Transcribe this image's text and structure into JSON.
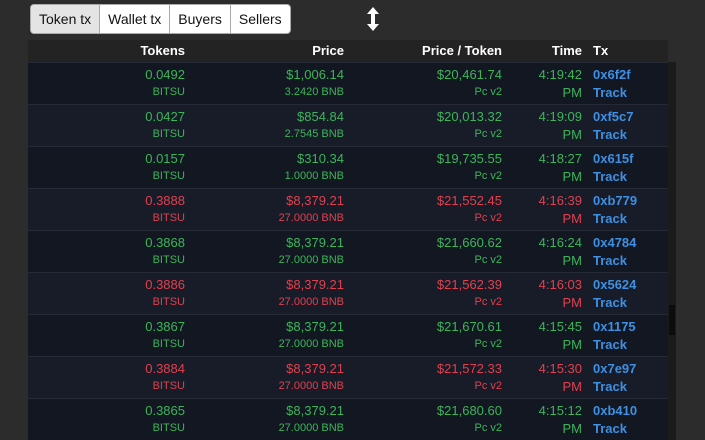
{
  "tabs": [
    "Token tx",
    "Wallet tx",
    "Buyers",
    "Sellers"
  ],
  "active_tab": 0,
  "columns": [
    "Tokens",
    "Price",
    "Price / Token",
    "Time",
    "Tx"
  ],
  "rows": [
    {
      "tokens": "0.0492",
      "symbol": "BITSU",
      "price": "$1,006.14",
      "price_bnb": "3.2420 BNB",
      "price_per_token": "$20,461.74",
      "dex": "Pc v2",
      "time": "4:19:42",
      "ampm": "PM",
      "tx": "0x6f2f",
      "link": "Track",
      "color": "#3cb55a"
    },
    {
      "tokens": "0.0427",
      "symbol": "BITSU",
      "price": "$854.84",
      "price_bnb": "2.7545 BNB",
      "price_per_token": "$20,013.32",
      "dex": "Pc v2",
      "time": "4:19:09",
      "ampm": "PM",
      "tx": "0xf5c7",
      "link": "Track",
      "color": "#3cb55a"
    },
    {
      "tokens": "0.0157",
      "symbol": "BITSU",
      "price": "$310.34",
      "price_bnb": "1.0000 BNB",
      "price_per_token": "$19,735.55",
      "dex": "Pc v2",
      "time": "4:18:27",
      "ampm": "PM",
      "tx": "0x615f",
      "link": "Track",
      "color": "#3cb55a"
    },
    {
      "tokens": "0.3888",
      "symbol": "BITSU",
      "price": "$8,379.21",
      "price_bnb": "27.0000 BNB",
      "price_per_token": "$21,552.45",
      "dex": "Pc v2",
      "time": "4:16:39",
      "ampm": "PM",
      "tx": "0xb779",
      "link": "Track",
      "color": "#e0404e"
    },
    {
      "tokens": "0.3868",
      "symbol": "BITSU",
      "price": "$8,379.21",
      "price_bnb": "27.0000 BNB",
      "price_per_token": "$21,660.62",
      "dex": "Pc v2",
      "time": "4:16:24",
      "ampm": "PM",
      "tx": "0x4784",
      "link": "Track",
      "color": "#3cb55a"
    },
    {
      "tokens": "0.3886",
      "symbol": "BITSU",
      "price": "$8,379.21",
      "price_bnb": "27.0000 BNB",
      "price_per_token": "$21,562.39",
      "dex": "Pc v2",
      "time": "4:16:03",
      "ampm": "PM",
      "tx": "0x5624",
      "link": "Track",
      "color": "#e0404e"
    },
    {
      "tokens": "0.3867",
      "symbol": "BITSU",
      "price": "$8,379.21",
      "price_bnb": "27.0000 BNB",
      "price_per_token": "$21,670.61",
      "dex": "Pc v2",
      "time": "4:15:45",
      "ampm": "PM",
      "tx": "0x1175",
      "link": "Track",
      "color": "#3cb55a"
    },
    {
      "tokens": "0.3884",
      "symbol": "BITSU",
      "price": "$8,379.21",
      "price_bnb": "27.0000 BNB",
      "price_per_token": "$21,572.33",
      "dex": "Pc v2",
      "time": "4:15:30",
      "ampm": "PM",
      "tx": "0x7e97",
      "link": "Track",
      "color": "#e0404e"
    },
    {
      "tokens": "0.3865",
      "symbol": "BITSU",
      "price": "$8,379.21",
      "price_bnb": "27.0000 BNB",
      "price_per_token": "$21,680.60",
      "dex": "Pc v2",
      "time": "4:15:12",
      "ampm": "PM",
      "tx": "0xb410",
      "link": "Track",
      "color": "#3cb55a"
    }
  ]
}
